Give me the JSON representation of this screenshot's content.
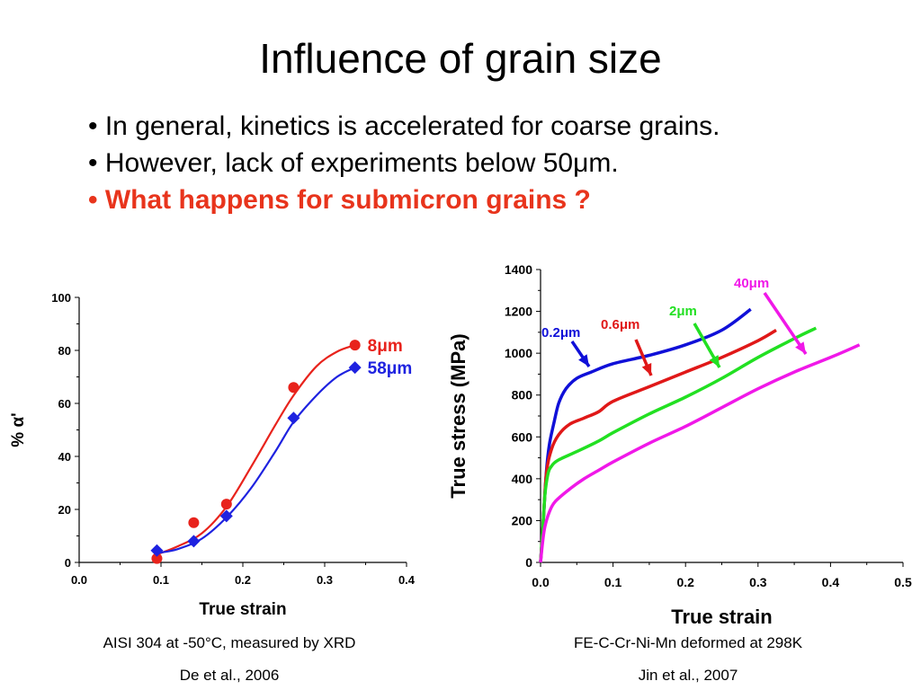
{
  "slide": {
    "title": "Influence of grain size",
    "bullets": [
      "• In general, kinetics is accelerated for coarse grains.",
      "• However, lack of experiments below 50μm.",
      "• What happens for submicron grains ?"
    ],
    "left_caption_1": "AISI 304 at -50°C, measured by XRD",
    "left_caption_2": "De et al., 2006",
    "right_caption_1": "FE-C-Cr-Ni-Mn deformed at 298K",
    "right_caption_2": "Jin et al., 2007"
  },
  "chart_data": [
    {
      "type": "scatter",
      "xlabel": "True strain",
      "ylabel": "% α'",
      "xlim": [
        0.0,
        0.4
      ],
      "ylim": [
        0,
        100
      ],
      "xticks": [
        "0.0",
        "0.1",
        "0.2",
        "0.3",
        "0.4"
      ],
      "yticks": [
        "0",
        "20",
        "40",
        "60",
        "80",
        "100"
      ],
      "legend": "inline-right",
      "series": [
        {
          "name": "8μm",
          "color": "#e8231c",
          "marker": "circle",
          "points": [
            [
              0.095,
              1.5
            ],
            [
              0.14,
              15
            ],
            [
              0.18,
              22
            ],
            [
              0.262,
              66
            ],
            [
              0.337,
              82
            ]
          ],
          "fit": [
            [
              0.095,
              3
            ],
            [
              0.12,
              6
            ],
            [
              0.15,
              11
            ],
            [
              0.18,
              21
            ],
            [
              0.21,
              36
            ],
            [
              0.24,
              52
            ],
            [
              0.262,
              63
            ],
            [
              0.29,
              74
            ],
            [
              0.315,
              79.5
            ],
            [
              0.337,
              82
            ]
          ]
        },
        {
          "name": "58μm",
          "color": "#1e22e0",
          "marker": "diamond",
          "points": [
            [
              0.095,
              4.5
            ],
            [
              0.14,
              8
            ],
            [
              0.18,
              17.5
            ],
            [
              0.262,
              54.5
            ],
            [
              0.337,
              73.5
            ]
          ],
          "fit": [
            [
              0.095,
              3.5
            ],
            [
              0.12,
              5
            ],
            [
              0.15,
              9
            ],
            [
              0.18,
              17
            ],
            [
              0.21,
              28
            ],
            [
              0.24,
              42
            ],
            [
              0.262,
              53
            ],
            [
              0.29,
              63
            ],
            [
              0.315,
              70
            ],
            [
              0.337,
              73.5
            ]
          ]
        }
      ]
    },
    {
      "type": "line",
      "xlabel": "True strain",
      "ylabel": "True stress (MPa)",
      "xlim": [
        0.0,
        0.5
      ],
      "ylim": [
        0,
        1400
      ],
      "xticks": [
        "0.0",
        "0.1",
        "0.2",
        "0.3",
        "0.4",
        "0.5"
      ],
      "yticks": [
        "0",
        "200",
        "400",
        "600",
        "800",
        "1000",
        "1200",
        "1400"
      ],
      "legend": "arrow-annotations",
      "series": [
        {
          "name": "0.2μm",
          "color": "#1010d8",
          "points": [
            [
              0,
              0
            ],
            [
              0.003,
              150
            ],
            [
              0.008,
              430
            ],
            [
              0.012,
              560
            ],
            [
              0.018,
              660
            ],
            [
              0.025,
              760
            ],
            [
              0.035,
              830
            ],
            [
              0.05,
              880
            ],
            [
              0.07,
              910
            ],
            [
              0.1,
              950
            ],
            [
              0.15,
              990
            ],
            [
              0.2,
              1040
            ],
            [
              0.25,
              1110
            ],
            [
              0.29,
              1210
            ]
          ]
        },
        {
          "name": "0.6μm",
          "color": "#e01818",
          "points": [
            [
              0,
              0
            ],
            [
              0.003,
              150
            ],
            [
              0.008,
              420
            ],
            [
              0.015,
              540
            ],
            [
              0.025,
              610
            ],
            [
              0.04,
              660
            ],
            [
              0.06,
              690
            ],
            [
              0.08,
              720
            ],
            [
              0.1,
              770
            ],
            [
              0.15,
              840
            ],
            [
              0.2,
              910
            ],
            [
              0.25,
              980
            ],
            [
              0.3,
              1060
            ],
            [
              0.325,
              1110
            ]
          ]
        },
        {
          "name": "2μm",
          "color": "#22e022",
          "points": [
            [
              0,
              0
            ],
            [
              0.003,
              150
            ],
            [
              0.006,
              320
            ],
            [
              0.01,
              420
            ],
            [
              0.015,
              460
            ],
            [
              0.025,
              490
            ],
            [
              0.05,
              530
            ],
            [
              0.08,
              580
            ],
            [
              0.1,
              620
            ],
            [
              0.15,
              710
            ],
            [
              0.2,
              790
            ],
            [
              0.25,
              880
            ],
            [
              0.3,
              980
            ],
            [
              0.35,
              1070
            ],
            [
              0.38,
              1120
            ]
          ]
        },
        {
          "name": "40μm",
          "color": "#f018e8",
          "points": [
            [
              0,
              0
            ],
            [
              0.003,
              100
            ],
            [
              0.006,
              170
            ],
            [
              0.012,
              240
            ],
            [
              0.02,
              290
            ],
            [
              0.04,
              350
            ],
            [
              0.06,
              400
            ],
            [
              0.08,
              440
            ],
            [
              0.1,
              480
            ],
            [
              0.15,
              570
            ],
            [
              0.2,
              650
            ],
            [
              0.25,
              740
            ],
            [
              0.3,
              830
            ],
            [
              0.35,
              910
            ],
            [
              0.4,
              980
            ],
            [
              0.44,
              1040
            ]
          ]
        }
      ]
    }
  ]
}
